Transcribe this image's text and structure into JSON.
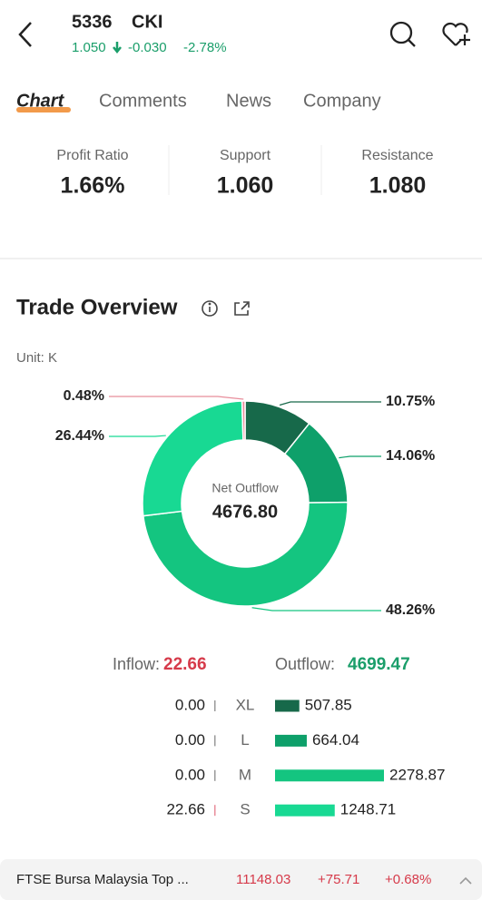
{
  "header": {
    "code": "5336",
    "name": "CKI",
    "price": "1.050",
    "change": "-0.030",
    "change_pct": "-2.78%"
  },
  "tabs": [
    "Chart",
    "Comments",
    "News",
    "Company"
  ],
  "stats": [
    {
      "label": "Profit Ratio",
      "value": "1.66%"
    },
    {
      "label": "Support",
      "value": "1.060"
    },
    {
      "label": "Resistance",
      "value": "1.080"
    }
  ],
  "section": {
    "title": "Trade Overview",
    "unit": "Unit: K"
  },
  "summary": {
    "inflow_label": "Inflow:",
    "inflow": "22.66",
    "outflow_label": "Outflow:",
    "outflow": "4699.47"
  },
  "chart_data": [
    {
      "type": "pie",
      "donut": true,
      "center_label": "Net Outflow",
      "center_value": "4676.80",
      "values": [
        10.75,
        14.06,
        48.26,
        26.44,
        0.48
      ],
      "value_labels": [
        "10.75%",
        "14.06%",
        "48.26%",
        "26.44%",
        "0.48%"
      ],
      "colors": [
        "#17694a",
        "#0ea06a",
        "#14c580",
        "#18d993",
        "#e88d9b"
      ]
    },
    {
      "type": "hbar",
      "categories": [
        "XL",
        "L",
        "M",
        "S"
      ],
      "series": [
        {
          "name": "Inflow",
          "values": [
            0,
            0,
            0,
            22.66
          ],
          "value_labels": [
            "0.00",
            "0.00",
            "0.00",
            "22.66"
          ],
          "colors": [
            "#999999",
            "#999999",
            "#999999",
            "#e88d9b"
          ]
        },
        {
          "name": "Outflow",
          "values": [
            507.85,
            664.04,
            2278.87,
            1248.71
          ],
          "colors": [
            "#17694a",
            "#0ea06a",
            "#14c580",
            "#18d993"
          ]
        }
      ]
    }
  ],
  "ticker": {
    "name": "FTSE Bursa Malaysia Top ...",
    "value": "11148.03",
    "change": "+75.71",
    "change_pct": "+0.68%"
  }
}
